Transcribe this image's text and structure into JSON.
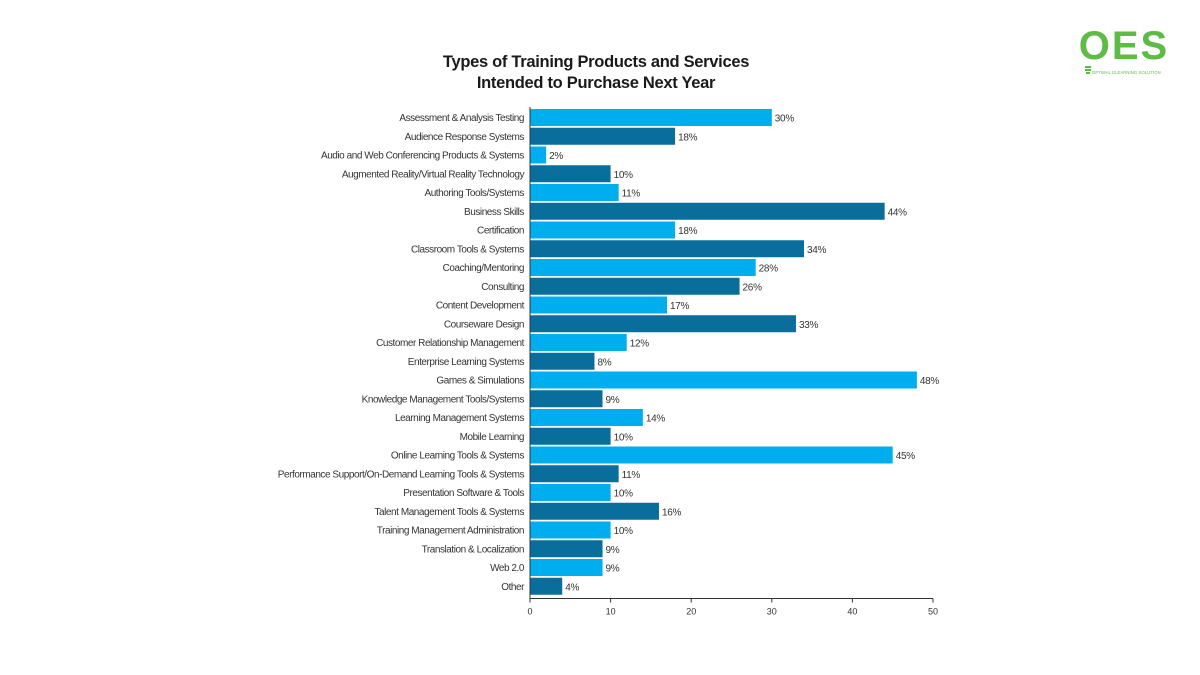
{
  "logo": {
    "text": "OES",
    "tagline": "OPTIMAL ELEARNING SOLUTION"
  },
  "colors": {
    "bar_light": "#00aeef",
    "bar_dark": "#0a6e9c",
    "logo": "#5dbb46",
    "axis": "#333333"
  },
  "chart_data": {
    "type": "bar",
    "orientation": "horizontal",
    "title_lines": [
      "Types of Training Products and Services",
      "Intended to Purchase Next Year"
    ],
    "categories": [
      "Assessment & Analysis Testing",
      "Audience Response Systems",
      "Audio and Web Conferencing Products & Systems",
      "Augmented Reality/Virtual Reality Technology",
      "Authoring Tools/Systems",
      "Business Skills",
      "Certification",
      "Classroom Tools & Systems",
      "Coaching/Mentoring",
      "Consulting",
      "Content Development",
      "Courseware Design",
      "Customer Relationship Management",
      "Enterprise Learning Systems",
      "Games & Simulations",
      "Knowledge Management Tools/Systems",
      "Learning Management Systems",
      "Mobile Learning",
      "Online Learning Tools & Systems",
      "Performance Support/On-Demand Learning Tools & Systems",
      "Presentation Software & Tools",
      "Talent Management Tools & Systems",
      "Training Management Administration",
      "Translation & Localization",
      "Web 2.0",
      "Other"
    ],
    "values": [
      30,
      18,
      2,
      10,
      11,
      44,
      18,
      34,
      28,
      26,
      17,
      33,
      12,
      8,
      48,
      9,
      14,
      10,
      45,
      11,
      10,
      16,
      10,
      9,
      9,
      4
    ],
    "value_labels": [
      "30%",
      "18%",
      "2%",
      "10%",
      "11%",
      "44%",
      "18%",
      "34%",
      "28%",
      "26%",
      "17%",
      "33%",
      "12%",
      "8%",
      "48%",
      "9%",
      "14%",
      "10%",
      "45%",
      "11%",
      "10%",
      "16%",
      "10%",
      "9%",
      "9%",
      "4%"
    ],
    "xlim": [
      0,
      50
    ],
    "xticks": [
      0,
      10,
      20,
      30,
      40,
      50
    ],
    "xlabel": "",
    "ylabel": "",
    "grid": false,
    "legend": "none"
  }
}
